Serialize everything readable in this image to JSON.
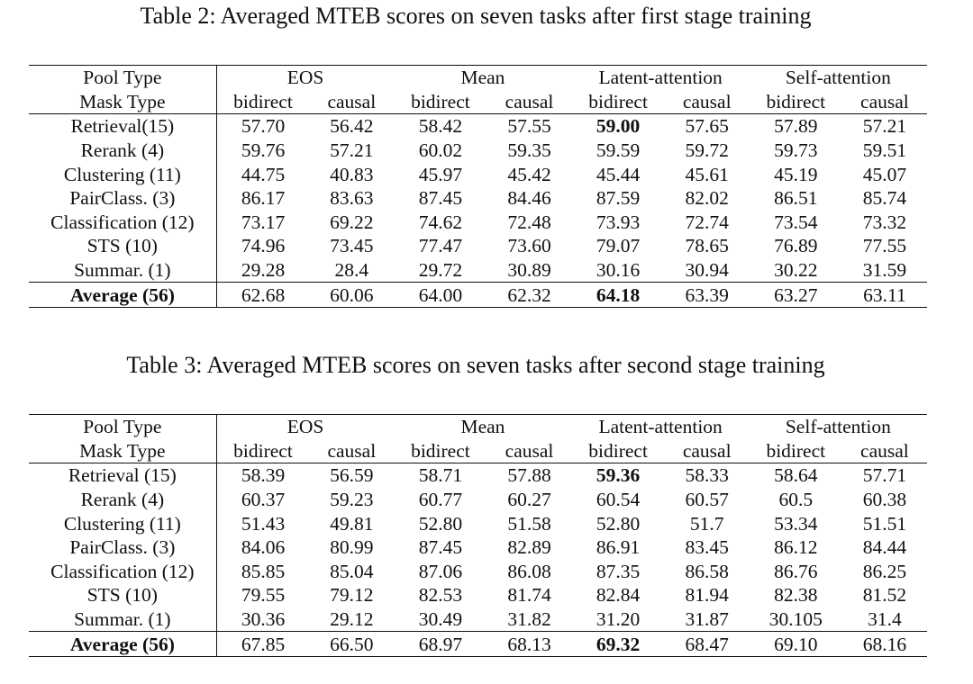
{
  "table2": {
    "caption": "Table 2: Averaged MTEB scores on seven tasks after first stage training",
    "pool_label": "Pool Type",
    "mask_label": "Mask Type",
    "pool_types": [
      "EOS",
      "Mean",
      "Latent-attention",
      "Self-attention"
    ],
    "mask_types": [
      "bidirect",
      "causal",
      "bidirect",
      "causal",
      "bidirect",
      "causal",
      "bidirect",
      "causal"
    ],
    "rows": [
      {
        "label": "Retrieval(15)",
        "values": [
          "57.70",
          "56.42",
          "58.42",
          "57.55",
          "59.00",
          "57.65",
          "57.89",
          "57.21"
        ],
        "bold": [
          4
        ]
      },
      {
        "label": "Rerank (4)",
        "values": [
          "59.76",
          "57.21",
          "60.02",
          "59.35",
          "59.59",
          "59.72",
          "59.73",
          "59.51"
        ],
        "bold": []
      },
      {
        "label": "Clustering (11)",
        "values": [
          "44.75",
          "40.83",
          "45.97",
          "45.42",
          "45.44",
          "45.61",
          "45.19",
          "45.07"
        ],
        "bold": []
      },
      {
        "label": "PairClass. (3)",
        "values": [
          "86.17",
          "83.63",
          "87.45",
          "84.46",
          "87.59",
          "82.02",
          "86.51",
          "85.74"
        ],
        "bold": []
      },
      {
        "label": "Classification (12)",
        "values": [
          "73.17",
          "69.22",
          "74.62",
          "72.48",
          "73.93",
          "72.74",
          "73.54",
          "73.32"
        ],
        "bold": []
      },
      {
        "label": "STS (10)",
        "values": [
          "74.96",
          "73.45",
          "77.47",
          "73.60",
          "79.07",
          "78.65",
          "76.89",
          "77.55"
        ],
        "bold": []
      },
      {
        "label": "Summar. (1)",
        "values": [
          "29.28",
          "28.4",
          "29.72",
          "30.89",
          "30.16",
          "30.94",
          "30.22",
          "31.59"
        ],
        "bold": []
      }
    ],
    "average": {
      "label": "Average (56)",
      "values": [
        "62.68",
        "60.06",
        "64.00",
        "62.32",
        "64.18",
        "63.39",
        "63.27",
        "63.11"
      ],
      "bold": [
        4
      ]
    }
  },
  "table3": {
    "caption": "Table 3: Averaged MTEB scores on seven tasks after second stage training",
    "pool_label": "Pool Type",
    "mask_label": "Mask Type",
    "pool_types": [
      "EOS",
      "Mean",
      "Latent-attention",
      "Self-attention"
    ],
    "mask_types": [
      "bidirect",
      "causal",
      "bidirect",
      "causal",
      "bidirect",
      "causal",
      "bidirect",
      "causal"
    ],
    "rows": [
      {
        "label": "Retrieval (15)",
        "values": [
          "58.39",
          "56.59",
          "58.71",
          "57.88",
          "59.36",
          "58.33",
          "58.64",
          "57.71"
        ],
        "bold": [
          4
        ]
      },
      {
        "label": "Rerank (4)",
        "values": [
          "60.37",
          "59.23",
          "60.77",
          "60.27",
          "60.54",
          "60.57",
          "60.5",
          "60.38"
        ],
        "bold": []
      },
      {
        "label": "Clustering (11)",
        "values": [
          "51.43",
          "49.81",
          "52.80",
          "51.58",
          "52.80",
          "51.7",
          "53.34",
          "51.51"
        ],
        "bold": []
      },
      {
        "label": "PairClass. (3)",
        "values": [
          "84.06",
          "80.99",
          "87.45",
          "82.89",
          "86.91",
          "83.45",
          "86.12",
          "84.44"
        ],
        "bold": []
      },
      {
        "label": "Classification (12)",
        "values": [
          "85.85",
          "85.04",
          "87.06",
          "86.08",
          "87.35",
          "86.58",
          "86.76",
          "86.25"
        ],
        "bold": []
      },
      {
        "label": "STS (10)",
        "values": [
          "79.55",
          "79.12",
          "82.53",
          "81.74",
          "82.84",
          "81.94",
          "82.38",
          "81.52"
        ],
        "bold": []
      },
      {
        "label": "Summar. (1)",
        "values": [
          "30.36",
          "29.12",
          "30.49",
          "31.82",
          "31.20",
          "31.87",
          "30.105",
          "31.4"
        ],
        "bold": []
      }
    ],
    "average": {
      "label": "Average (56)",
      "values": [
        "67.85",
        "66.50",
        "68.97",
        "68.13",
        "69.32",
        "68.47",
        "69.10",
        "68.16"
      ],
      "bold": [
        4
      ]
    }
  }
}
